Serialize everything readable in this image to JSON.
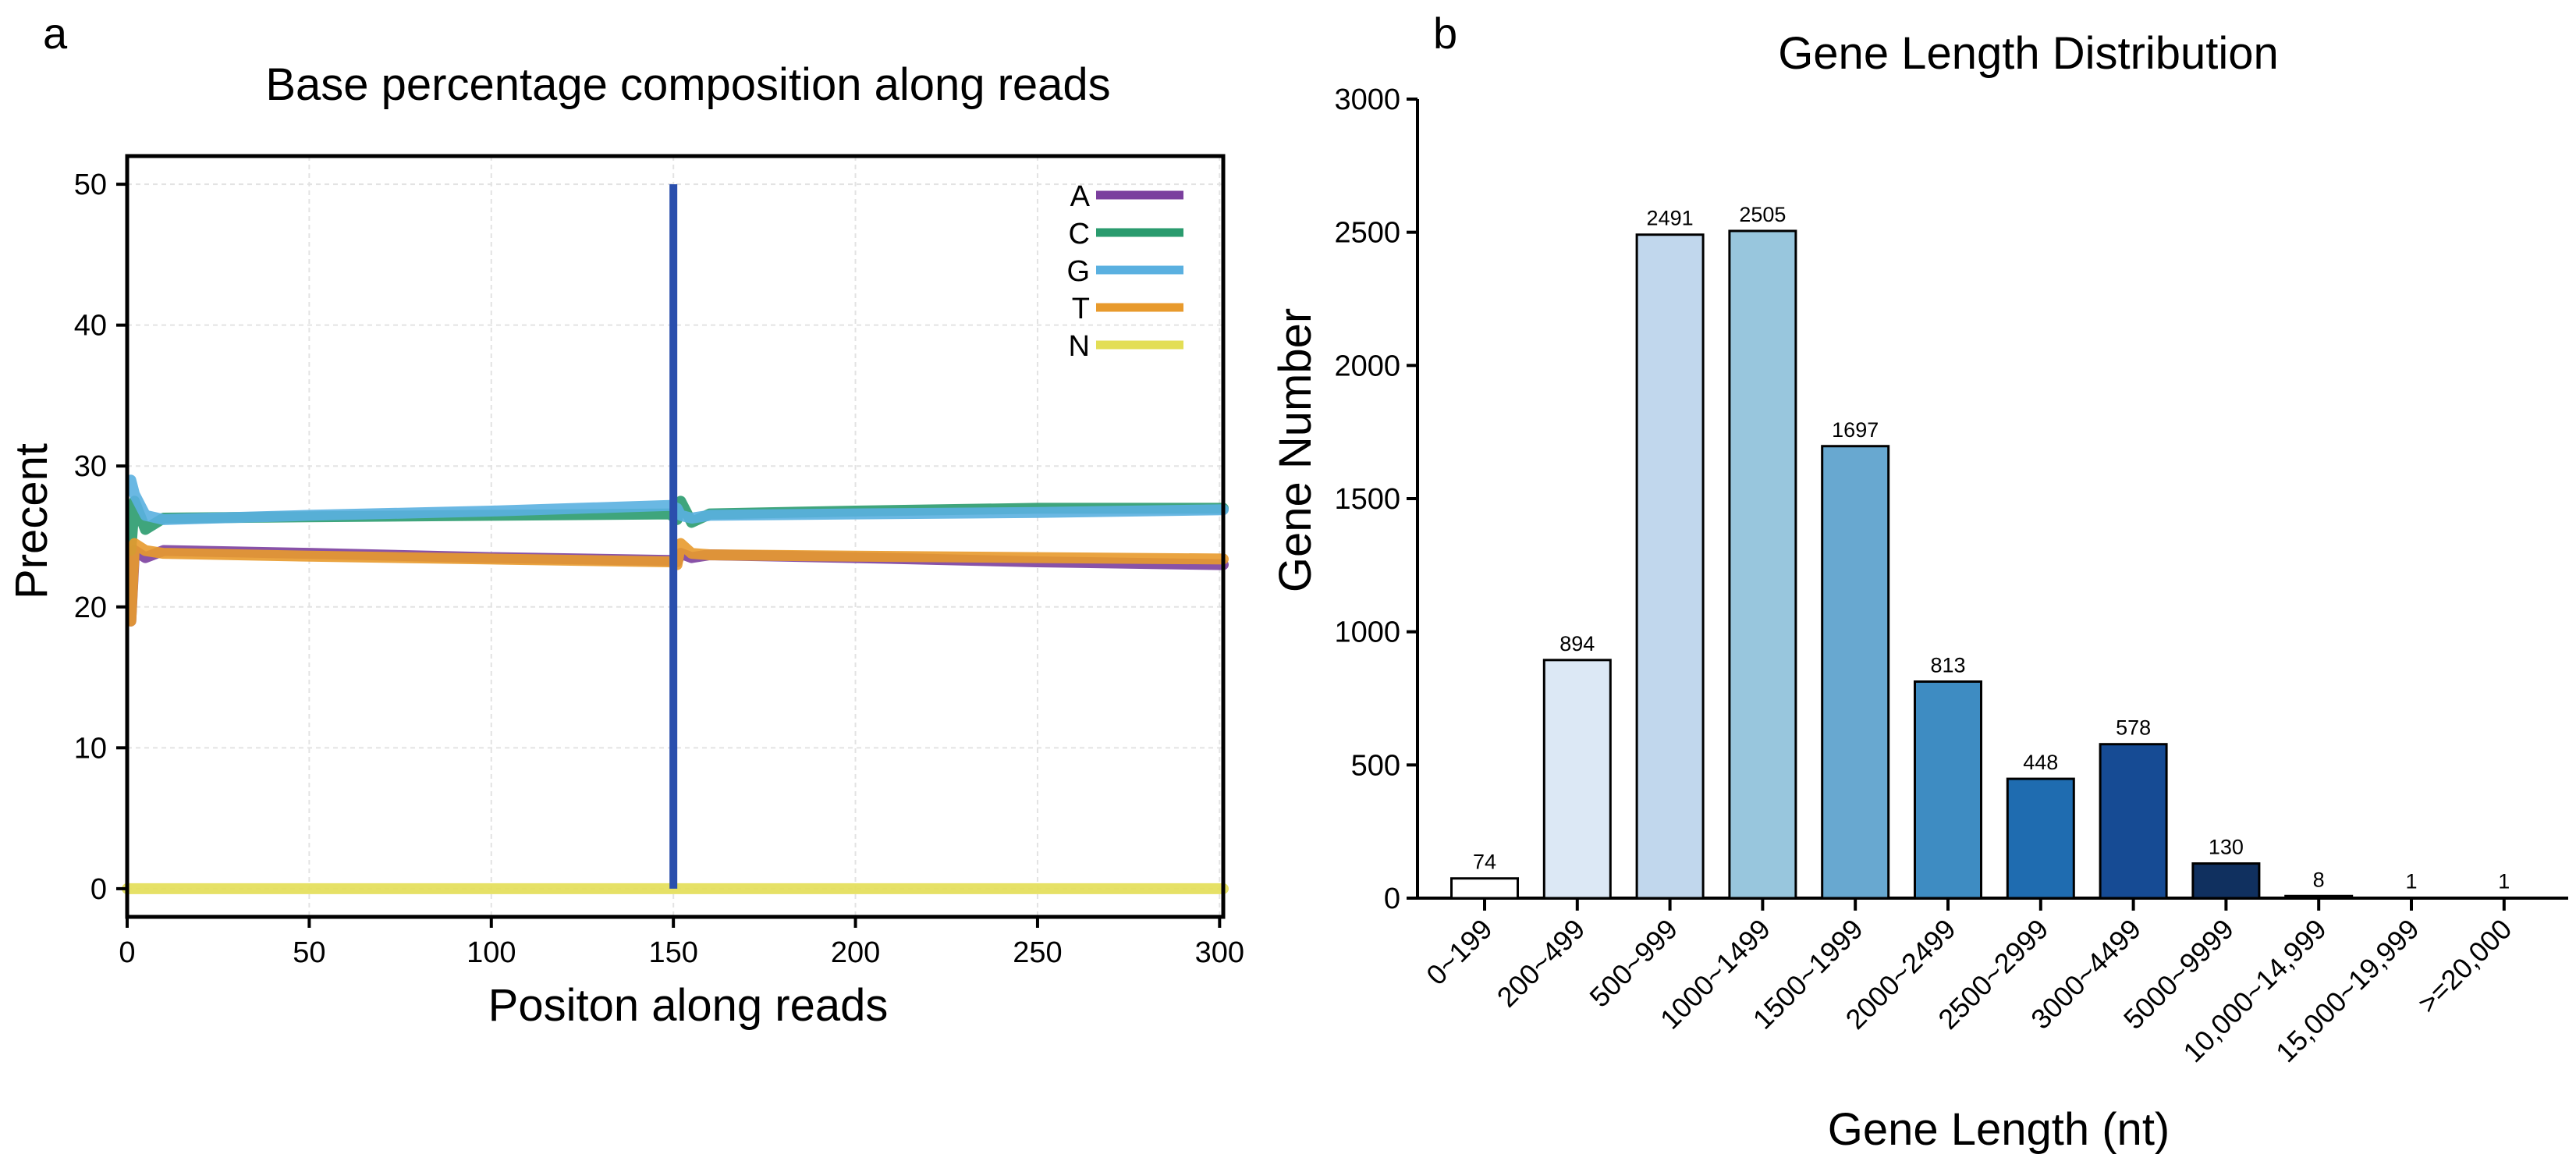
{
  "chart_data": [
    {
      "panel": "a",
      "type": "line",
      "title": "Base percentage composition along reads",
      "xlabel": "Positon along reads",
      "ylabel": "Precent",
      "xlim": [
        0,
        301
      ],
      "ylim": [
        -2,
        52
      ],
      "xticks": [
        0,
        50,
        100,
        150,
        200,
        250,
        300
      ],
      "yticks": [
        0,
        10,
        20,
        30,
        40,
        50
      ],
      "grid": true,
      "legend_position": "top-right",
      "series": [
        {
          "name": "A",
          "color": "#7b3f9e",
          "x": [
            1,
            2,
            5,
            10,
            50,
            100,
            149,
            151,
            152,
            155,
            160,
            200,
            250,
            301
          ],
          "values": [
            19,
            24,
            23.5,
            24,
            23.8,
            23.5,
            23.3,
            23.2,
            23.8,
            23.5,
            23.7,
            23.5,
            23.2,
            23
          ]
        },
        {
          "name": "C",
          "color": "#2a9b6e",
          "x": [
            1,
            2,
            5,
            10,
            50,
            100,
            149,
            151,
            152,
            155,
            160,
            200,
            250,
            301
          ],
          "values": [
            24,
            27.5,
            25.5,
            26.3,
            26.4,
            26.5,
            26.6,
            26.2,
            27.5,
            26,
            26.6,
            26.8,
            27,
            27
          ]
        },
        {
          "name": "G",
          "color": "#5ab0e0",
          "x": [
            1,
            2,
            5,
            10,
            50,
            100,
            149,
            151,
            152,
            155,
            160,
            200,
            250,
            301
          ],
          "values": [
            29,
            28,
            26.5,
            26.2,
            26.5,
            26.8,
            27.2,
            27,
            26.5,
            26.3,
            26.5,
            26.6,
            26.7,
            26.9
          ]
        },
        {
          "name": "T",
          "color": "#e89a2c",
          "x": [
            1,
            2,
            5,
            10,
            50,
            100,
            149,
            151,
            152,
            155,
            160,
            200,
            250,
            301
          ],
          "values": [
            19,
            24.5,
            24,
            23.8,
            23.6,
            23.4,
            23.2,
            23,
            24.5,
            23.8,
            23.7,
            23.6,
            23.5,
            23.4
          ]
        },
        {
          "name": "N",
          "color": "#e3de55",
          "x": [
            0,
            301
          ],
          "values": [
            0,
            0
          ]
        }
      ],
      "annotations": [
        {
          "type": "vline",
          "x": 150,
          "y_range": [
            0,
            50
          ],
          "color": "#2a4fad"
        }
      ]
    },
    {
      "panel": "b",
      "type": "bar",
      "title": "Gene Length Distribution",
      "xlabel": "Gene Length (nt)",
      "ylabel": "Gene Number",
      "ylim": [
        0,
        3000
      ],
      "yticks": [
        0,
        500,
        1000,
        1500,
        2000,
        2500,
        3000
      ],
      "grid": false,
      "categories": [
        "0~199",
        "200~499",
        "500~999",
        "1000~1499",
        "1500~1999",
        "2000~2499",
        "2500~2999",
        "3000~4499",
        "5000~9999",
        "10,000~14,999",
        "15,000~19,999",
        ">=20,000"
      ],
      "values": [
        74,
        894,
        2491,
        2505,
        1697,
        813,
        448,
        578,
        130,
        8,
        1,
        1
      ],
      "colors": [
        "#ffffff",
        "#dce8f5",
        "#c1d7ed",
        "#98c6dd",
        "#68a8d0",
        "#3e8cc2",
        "#1f6cb0",
        "#164b94",
        "#10305f",
        "#0b1d40",
        "#0b1d40",
        "#0b1d40"
      ]
    }
  ]
}
